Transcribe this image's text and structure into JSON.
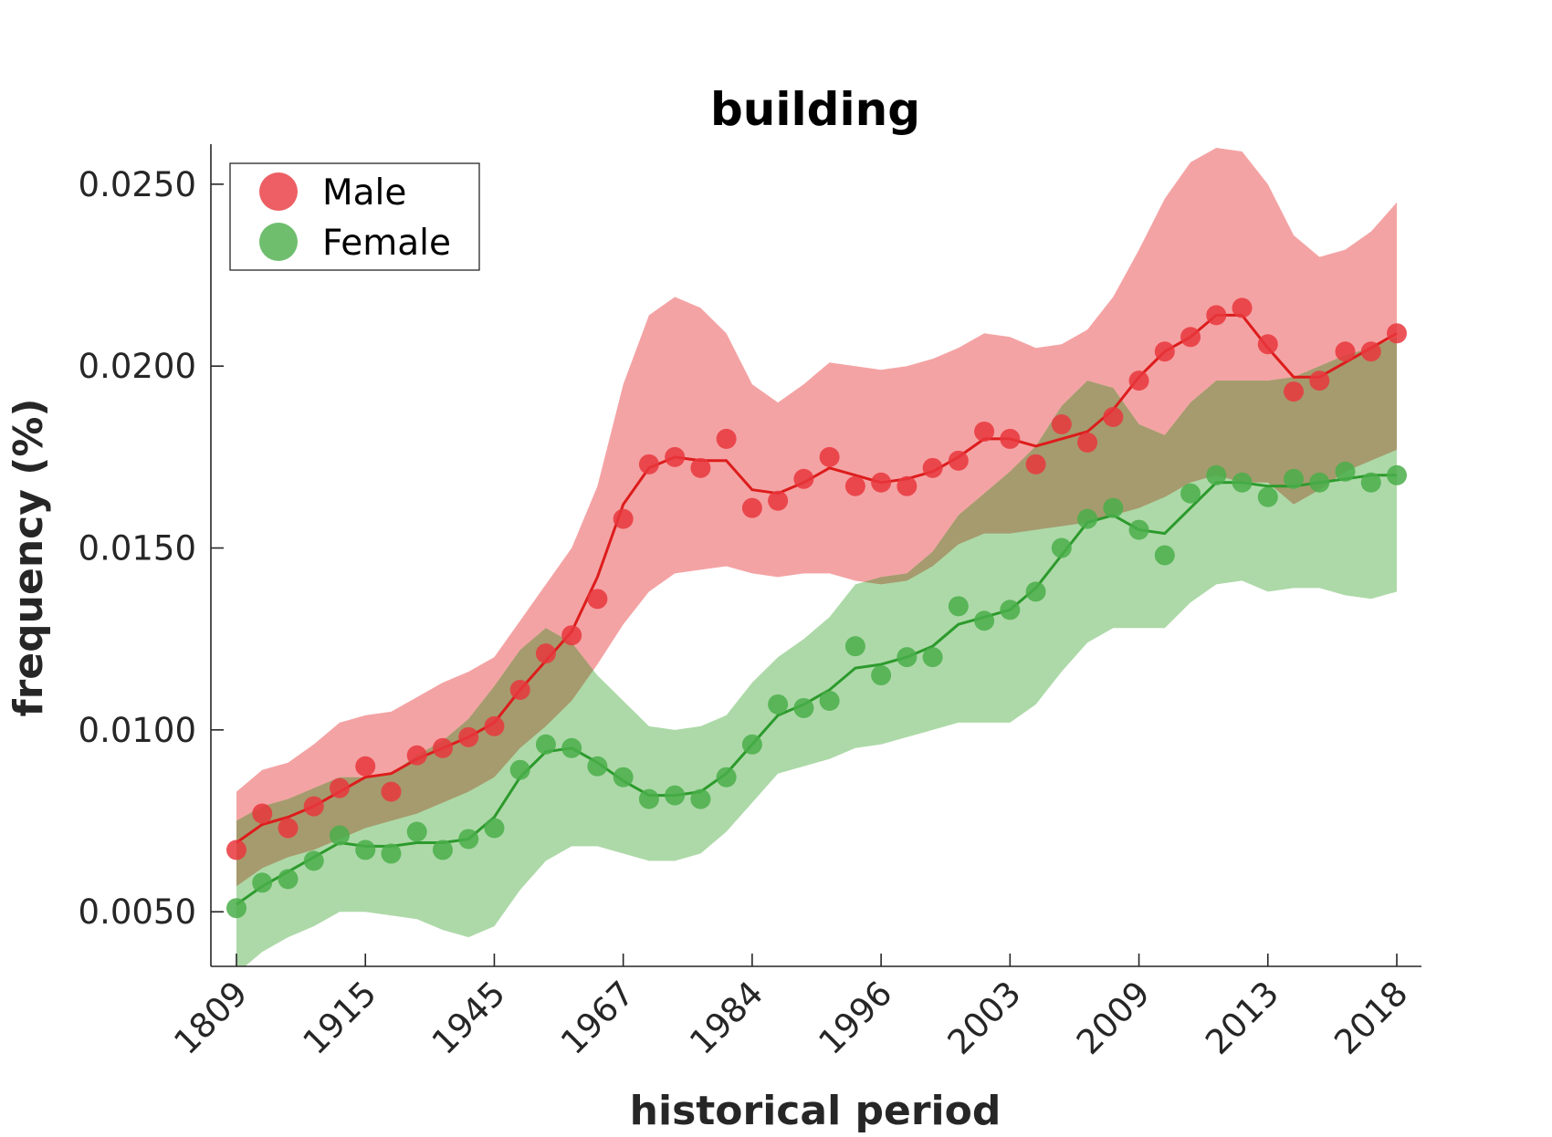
{
  "chart_data": {
    "type": "line",
    "title": "building",
    "xlabel": "historical period",
    "ylabel": "frequency (%)",
    "ylim": [
      0.0035,
      0.0261
    ],
    "y_ticks": [
      "0.0050",
      "0.0100",
      "0.0150",
      "0.0200",
      "0.0250"
    ],
    "x_tick_labels": [
      "1809",
      "1915",
      "1945",
      "1967",
      "1984",
      "1996",
      "2003",
      "2009",
      "2013",
      "2018"
    ],
    "x_tick_positions": [
      0,
      5,
      10,
      15,
      20,
      25,
      30,
      35,
      40,
      45
    ],
    "x_count": 46,
    "legend": {
      "position": "top-left",
      "entries": [
        "Male",
        "Female"
      ]
    },
    "colors": {
      "male_line": "#dd1c1c",
      "male_dot": "#e8373d",
      "male_band": "#f4a3a4",
      "female_line": "#2c9a2c",
      "female_dot": "#4aae4a",
      "female_band": "#add9a8",
      "overlap_band": "#a69b6e"
    },
    "series": [
      {
        "name": "Male",
        "points": [
          0.0067,
          0.0077,
          0.0073,
          0.0079,
          0.0084,
          0.009,
          0.0083,
          0.0093,
          0.0095,
          0.0098,
          0.0101,
          0.0111,
          0.0121,
          0.0126,
          0.0136,
          0.0158,
          0.0173,
          0.0175,
          0.0172,
          0.018,
          0.0161,
          0.0163,
          0.0169,
          0.0175,
          0.0167,
          0.0168,
          0.0167,
          0.0172,
          0.0174,
          0.0182,
          0.018,
          0.0173,
          0.0184,
          0.0179,
          0.0186,
          0.0196,
          0.0204,
          0.0208,
          0.0214,
          0.0216,
          0.0206,
          0.0193,
          0.0196,
          0.0204,
          0.0204,
          0.0209
        ],
        "line": [
          0.0069,
          0.0074,
          0.0076,
          0.0079,
          0.0083,
          0.0087,
          0.0088,
          0.0092,
          0.0095,
          0.0098,
          0.0102,
          0.0111,
          0.0119,
          0.0127,
          0.0142,
          0.0162,
          0.0172,
          0.0175,
          0.0174,
          0.0174,
          0.0166,
          0.0165,
          0.0168,
          0.0172,
          0.017,
          0.0168,
          0.0169,
          0.0171,
          0.0175,
          0.018,
          0.018,
          0.0178,
          0.018,
          0.0182,
          0.0188,
          0.0197,
          0.0204,
          0.0208,
          0.0214,
          0.0214,
          0.0205,
          0.0197,
          0.0197,
          0.0201,
          0.0205,
          0.0209
        ],
        "band_upper": [
          0.0083,
          0.0089,
          0.0091,
          0.0096,
          0.0102,
          0.0104,
          0.0105,
          0.0109,
          0.0113,
          0.0116,
          0.012,
          0.013,
          0.014,
          0.015,
          0.0167,
          0.0195,
          0.0214,
          0.0219,
          0.0216,
          0.0209,
          0.0195,
          0.019,
          0.0195,
          0.0201,
          0.02,
          0.0199,
          0.02,
          0.0202,
          0.0205,
          0.0209,
          0.0208,
          0.0205,
          0.0206,
          0.021,
          0.0219,
          0.0232,
          0.0246,
          0.0256,
          0.026,
          0.0259,
          0.025,
          0.0236,
          0.023,
          0.0232,
          0.0237,
          0.0245
        ],
        "band_lower": [
          0.0057,
          0.0062,
          0.0065,
          0.0067,
          0.007,
          0.0073,
          0.0075,
          0.0077,
          0.008,
          0.0083,
          0.0087,
          0.0095,
          0.0101,
          0.0108,
          0.0118,
          0.0129,
          0.0138,
          0.0143,
          0.0144,
          0.0145,
          0.0143,
          0.0142,
          0.0143,
          0.0143,
          0.0141,
          0.014,
          0.0141,
          0.0145,
          0.0151,
          0.0154,
          0.0154,
          0.0155,
          0.0156,
          0.0157,
          0.0159,
          0.0161,
          0.0164,
          0.0168,
          0.017,
          0.0168,
          0.0168,
          0.0162,
          0.0166,
          0.0171,
          0.0174,
          0.0177
        ]
      },
      {
        "name": "Female",
        "points": [
          0.0051,
          0.0058,
          0.0059,
          0.0064,
          0.0071,
          0.0067,
          0.0066,
          0.0072,
          0.0067,
          0.007,
          0.0073,
          0.0089,
          0.0096,
          0.0095,
          0.009,
          0.0087,
          0.0081,
          0.0082,
          0.0081,
          0.0087,
          0.0096,
          0.0107,
          0.0106,
          0.0108,
          0.0123,
          0.0115,
          0.012,
          0.012,
          0.0134,
          0.013,
          0.0133,
          0.0138,
          0.015,
          0.0158,
          0.0161,
          0.0155,
          0.0148,
          0.0165,
          0.017,
          0.0168,
          0.0164,
          0.0169,
          0.0168,
          0.0171,
          0.0168,
          0.017
        ],
        "line": [
          0.0052,
          0.0057,
          0.0061,
          0.0065,
          0.0069,
          0.0068,
          0.0068,
          0.0069,
          0.0069,
          0.007,
          0.0076,
          0.0087,
          0.0094,
          0.0095,
          0.0091,
          0.0086,
          0.0082,
          0.0082,
          0.0083,
          0.0088,
          0.0096,
          0.0104,
          0.0107,
          0.0111,
          0.0117,
          0.0118,
          0.012,
          0.0123,
          0.0129,
          0.0131,
          0.0133,
          0.0139,
          0.0148,
          0.0157,
          0.0159,
          0.0155,
          0.0154,
          0.0161,
          0.0168,
          0.0168,
          0.0167,
          0.0167,
          0.0168,
          0.0169,
          0.017,
          0.017
        ],
        "band_upper": [
          0.0075,
          0.0079,
          0.0081,
          0.0084,
          0.0087,
          0.0087,
          0.0088,
          0.0093,
          0.0097,
          0.0103,
          0.0112,
          0.0122,
          0.0128,
          0.0124,
          0.0115,
          0.0108,
          0.0101,
          0.01,
          0.0101,
          0.0104,
          0.0113,
          0.012,
          0.0125,
          0.0131,
          0.014,
          0.0142,
          0.0143,
          0.0149,
          0.0159,
          0.0165,
          0.0171,
          0.0178,
          0.0189,
          0.0196,
          0.0194,
          0.0184,
          0.0181,
          0.019,
          0.0196,
          0.0196,
          0.0196,
          0.0197,
          0.02,
          0.0203,
          0.0205,
          0.0208
        ],
        "band_lower": [
          0.0033,
          0.0039,
          0.0043,
          0.0046,
          0.005,
          0.005,
          0.0049,
          0.0048,
          0.0045,
          0.0043,
          0.0046,
          0.0056,
          0.0064,
          0.0068,
          0.0068,
          0.0066,
          0.0064,
          0.0064,
          0.0066,
          0.0072,
          0.008,
          0.0088,
          0.009,
          0.0092,
          0.0095,
          0.0096,
          0.0098,
          0.01,
          0.0102,
          0.0102,
          0.0102,
          0.0107,
          0.0116,
          0.0124,
          0.0128,
          0.0128,
          0.0128,
          0.0135,
          0.014,
          0.0141,
          0.0138,
          0.0139,
          0.0139,
          0.0137,
          0.0136,
          0.0138
        ]
      }
    ]
  }
}
